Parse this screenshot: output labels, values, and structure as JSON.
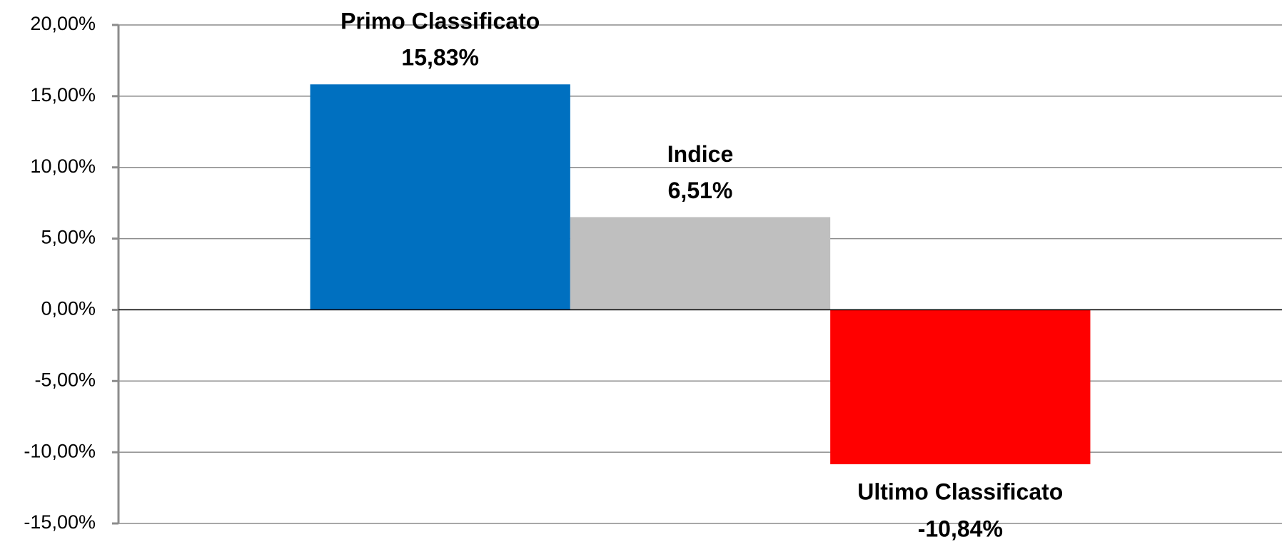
{
  "chart_data": {
    "type": "bar",
    "categories": [
      null
    ],
    "series": [
      {
        "name": "Primo Classificato",
        "color": "#0070c0",
        "values": [
          15.83
        ],
        "value_labels": [
          "15,83%"
        ]
      },
      {
        "name": "Indice",
        "color": "#bfbfbf",
        "values": [
          6.51
        ],
        "value_labels": [
          "6,51%"
        ]
      },
      {
        "name": "Ultimo Classificato",
        "color": "#ff0000",
        "values": [
          -10.84
        ],
        "value_labels": [
          "-10,84%"
        ]
      }
    ],
    "ylim": [
      -15,
      20
    ],
    "yticks": [
      {
        "value": -15,
        "label": "-15,00%"
      },
      {
        "value": -10,
        "label": "-10,00%"
      },
      {
        "value": -5,
        "label": "-5,00%"
      },
      {
        "value": 0,
        "label": "0,00%"
      },
      {
        "value": 5,
        "label": "5,00%"
      },
      {
        "value": 10,
        "label": "10,00%"
      },
      {
        "value": 15,
        "label": "15,00%"
      },
      {
        "value": 20,
        "label": "20,00%"
      }
    ],
    "grid": true
  }
}
